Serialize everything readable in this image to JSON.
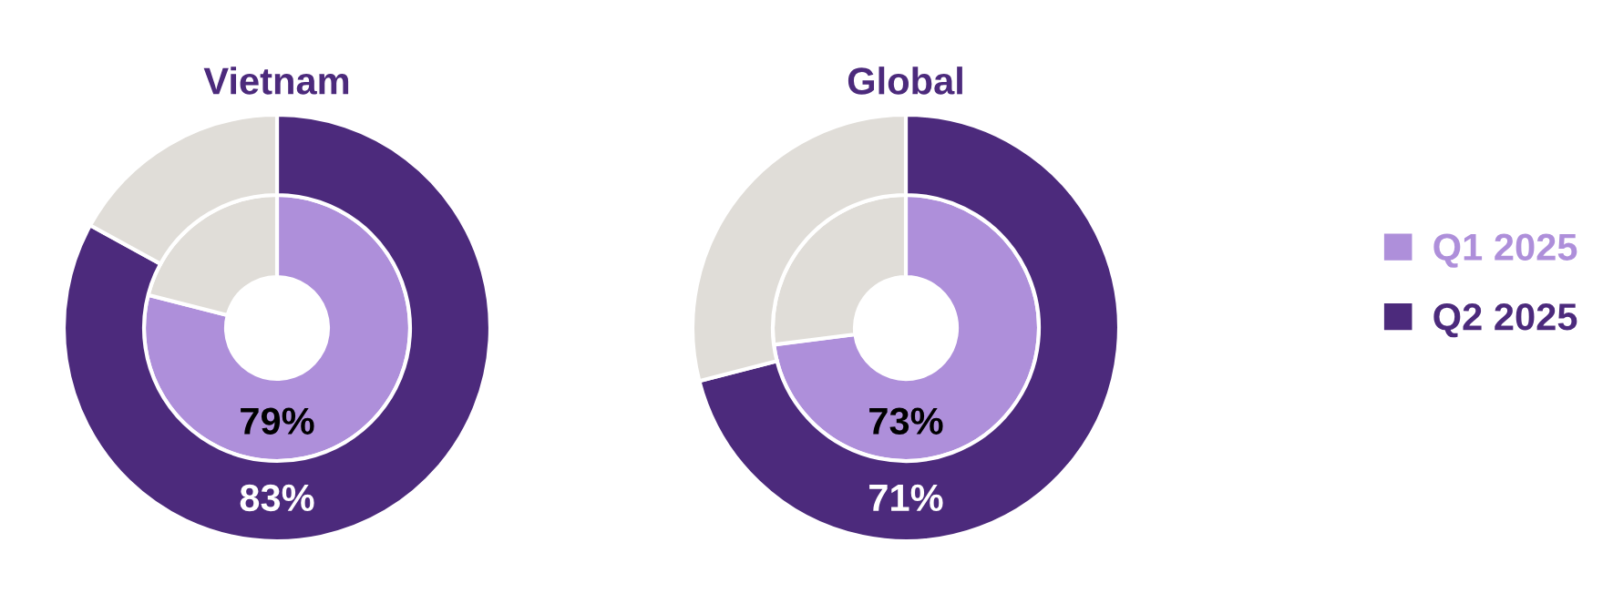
{
  "chart_data": [
    {
      "type": "donut",
      "title": "Vietnam",
      "categories": [
        null,
        null
      ],
      "series": [
        {
          "colors": [
            "#ae8fda",
            "#e0ddd8"
          ],
          "values": [
            79,
            21
          ],
          "value_labels": [
            "79%",
            null
          ]
        },
        {
          "colors": [
            "#4c2a7c",
            "#e0ddd8"
          ],
          "values": [
            83,
            17
          ],
          "value_labels": [
            "83%",
            null
          ]
        }
      ]
    },
    {
      "type": "donut",
      "title": "Global",
      "categories": [
        null,
        null
      ],
      "legend": "right",
      "series": [
        {
          "name": "Q1 2025",
          "colors": [
            "#ae8fda",
            "#e0ddd8"
          ],
          "values": [
            73,
            27
          ],
          "value_labels": [
            "73%",
            null
          ]
        },
        {
          "name": "Q2 2025",
          "colors": [
            "#4c2a7c",
            "#e0ddd8"
          ],
          "values": [
            71,
            29
          ],
          "value_labels": [
            "71%",
            null
          ]
        }
      ]
    }
  ]
}
